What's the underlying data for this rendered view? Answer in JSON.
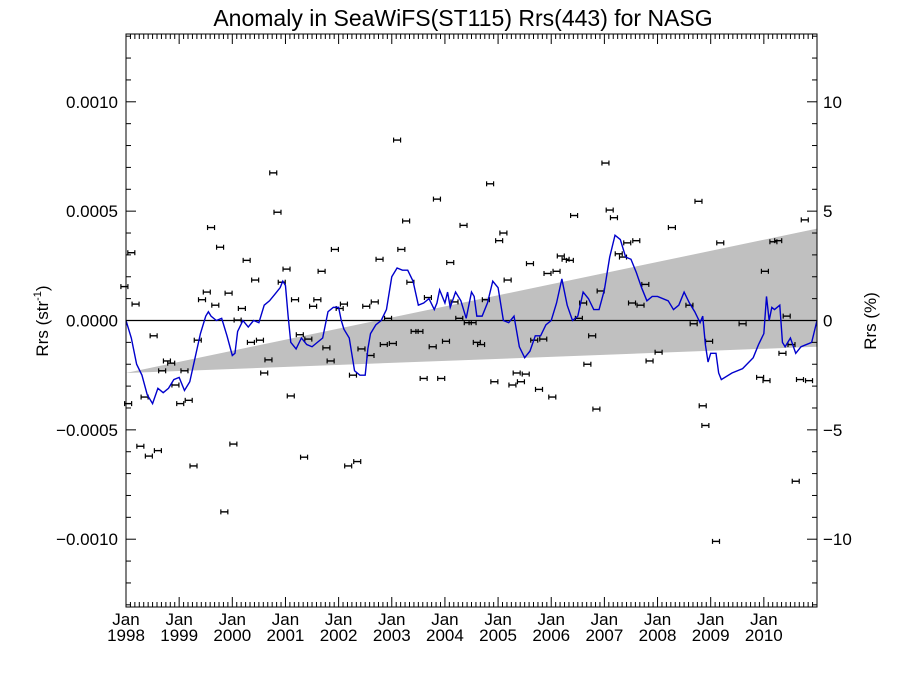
{
  "chart_data": {
    "type": "scatter",
    "title": "Anomaly in SeaWiFS(ST115) Rrs(443) for NASG",
    "ylabel_left": "Rrs (str",
    "ylabel_left_sup": "-1",
    "ylabel_left_end": ")",
    "ylabel_right": "Rrs (%)",
    "ylim_left": [
      -0.00131,
      0.00131
    ],
    "ylim_right": [
      -13.1,
      13.1
    ],
    "xlim": [
      1998.0,
      2011.0
    ],
    "left_ticks": [
      {
        "value": 0.001,
        "label": "0.0010"
      },
      {
        "value": 0.0005,
        "label": "0.0005"
      },
      {
        "value": 0.0,
        "label": "0.0000"
      },
      {
        "value": -0.0005,
        "label": "−0.0005"
      },
      {
        "value": -0.001,
        "label": "−0.0010"
      }
    ],
    "right_ticks": [
      {
        "value": 10,
        "label": "10"
      },
      {
        "value": 5,
        "label": "5"
      },
      {
        "value": 0,
        "label": "0"
      },
      {
        "value": -5,
        "label": "−5"
      },
      {
        "value": -10,
        "label": "−10"
      }
    ],
    "x_ticks": [
      {
        "value": 1998,
        "month": "Jan",
        "year": "1998"
      },
      {
        "value": 1999,
        "month": "Jan",
        "year": "1999"
      },
      {
        "value": 2000,
        "month": "Jan",
        "year": "2000"
      },
      {
        "value": 2001,
        "month": "Jan",
        "year": "2001"
      },
      {
        "value": 2002,
        "month": "Jan",
        "year": "2002"
      },
      {
        "value": 2003,
        "month": "Jan",
        "year": "2003"
      },
      {
        "value": 2004,
        "month": "Jan",
        "year": "2004"
      },
      {
        "value": 2005,
        "month": "Jan",
        "year": "2005"
      },
      {
        "value": 2006,
        "month": "Jan",
        "year": "2006"
      },
      {
        "value": 2007,
        "month": "Jan",
        "year": "2007"
      },
      {
        "value": 2008,
        "month": "Jan",
        "year": "2008"
      },
      {
        "value": 2009,
        "month": "Jan",
        "year": "2009"
      },
      {
        "value": 2010,
        "month": "Jan",
        "year": "2010"
      }
    ],
    "trend_band": {
      "x": [
        1998.0,
        2011.0
      ],
      "upper": [
        -0.00024,
        0.00042
      ],
      "lower": [
        -0.00024,
        -0.00012
      ],
      "color": "#c0c0c0"
    },
    "zero_line": 0,
    "line_color": "#0000cc",
    "points": [
      [
        1997.97,
        0.000155
      ],
      [
        1998.04,
        -0.00038
      ],
      [
        1998.1,
        0.00031
      ],
      [
        1998.18,
        7.5e-05
      ],
      [
        1998.27,
        -0.000575
      ],
      [
        1998.35,
        -0.00035
      ],
      [
        1998.43,
        -0.00062
      ],
      [
        1998.52,
        -7e-05
      ],
      [
        1998.6,
        -0.000595
      ],
      [
        1998.68,
        -0.00023
      ],
      [
        1998.77,
        -0.000185
      ],
      [
        1998.85,
        -0.000195
      ],
      [
        1998.93,
        -0.000295
      ],
      [
        1999.02,
        -0.00038
      ],
      [
        1999.1,
        -0.00023
      ],
      [
        1999.18,
        -0.000365
      ],
      [
        1999.27,
        -0.000665
      ],
      [
        1999.35,
        -9e-05
      ],
      [
        1999.43,
        9.5e-05
      ],
      [
        1999.52,
        0.00013
      ],
      [
        1999.6,
        0.000425
      ],
      [
        1999.68,
        7e-05
      ],
      [
        1999.77,
        0.000335
      ],
      [
        1999.85,
        -0.000875
      ],
      [
        1999.93,
        0.000125
      ],
      [
        2000.02,
        -0.000565
      ],
      [
        2000.1,
        2e-06
      ],
      [
        2000.18,
        5.5e-05
      ],
      [
        2000.27,
        0.000275
      ],
      [
        2000.35,
        -0.0001
      ],
      [
        2000.43,
        0.000185
      ],
      [
        2000.52,
        -9e-05
      ],
      [
        2000.6,
        -0.00024
      ],
      [
        2000.68,
        -0.00018
      ],
      [
        2000.77,
        0.000675
      ],
      [
        2000.85,
        0.000495
      ],
      [
        2000.93,
        0.000175
      ],
      [
        2001.02,
        0.000235
      ],
      [
        2001.1,
        -0.000345
      ],
      [
        2001.18,
        9.5e-05
      ],
      [
        2001.27,
        -6.5e-05
      ],
      [
        2001.35,
        -0.000625
      ],
      [
        2001.43,
        -8.5e-05
      ],
      [
        2001.52,
        6.5e-05
      ],
      [
        2001.6,
        9.5e-05
      ],
      [
        2001.68,
        0.000225
      ],
      [
        2001.77,
        -0.000125
      ],
      [
        2001.85,
        -0.000185
      ],
      [
        2001.93,
        0.000325
      ],
      [
        2002.02,
        5.5e-05
      ],
      [
        2002.1,
        7.5e-05
      ],
      [
        2002.18,
        -0.000665
      ],
      [
        2002.27,
        -0.00025
      ],
      [
        2002.35,
        -0.000645
      ],
      [
        2002.43,
        -0.00013
      ],
      [
        2002.52,
        6.5e-05
      ],
      [
        2002.6,
        -0.00016
      ],
      [
        2002.68,
        8.5e-05
      ],
      [
        2002.77,
        0.00028
      ],
      [
        2002.85,
        -0.00011
      ],
      [
        2002.93,
        1e-05
      ],
      [
        2003.02,
        -0.000105
      ],
      [
        2003.1,
        0.000825
      ],
      [
        2003.18,
        0.000325
      ],
      [
        2003.27,
        0.000455
      ],
      [
        2003.35,
        0.000175
      ],
      [
        2003.43,
        -5e-05
      ],
      [
        2003.52,
        -5e-05
      ],
      [
        2003.6,
        -0.000265
      ],
      [
        2003.68,
        0.000105
      ],
      [
        2003.77,
        -0.00012
      ],
      [
        2003.85,
        0.000555
      ],
      [
        2003.93,
        -0.000265
      ],
      [
        2004.02,
        -9.5e-05
      ],
      [
        2004.1,
        0.000265
      ],
      [
        2004.18,
        8.5e-05
      ],
      [
        2004.27,
        1e-05
      ],
      [
        2004.35,
        0.000435
      ],
      [
        2004.43,
        -1e-05
      ],
      [
        2004.52,
        -1e-05
      ],
      [
        2004.6,
        -0.0001
      ],
      [
        2004.68,
        -0.00011
      ],
      [
        2004.77,
        9.5e-05
      ],
      [
        2004.85,
        0.000625
      ],
      [
        2004.93,
        -0.00028
      ],
      [
        2005.02,
        0.000365
      ],
      [
        2005.1,
        0.0004
      ],
      [
        2005.18,
        0.000185
      ],
      [
        2005.27,
        -0.000295
      ],
      [
        2005.35,
        -0.00024
      ],
      [
        2005.43,
        -0.00028
      ],
      [
        2005.52,
        -0.000245
      ],
      [
        2005.6,
        0.00026
      ],
      [
        2005.68,
        -9e-05
      ],
      [
        2005.77,
        -0.000315
      ],
      [
        2005.85,
        -8.5e-05
      ],
      [
        2005.93,
        0.000215
      ],
      [
        2006.02,
        -0.00035
      ],
      [
        2006.1,
        0.000225
      ],
      [
        2006.18,
        0.000295
      ],
      [
        2006.27,
        0.00028
      ],
      [
        2006.35,
        0.000275
      ],
      [
        2006.43,
        0.00048
      ],
      [
        2006.52,
        1e-05
      ],
      [
        2006.6,
        8e-05
      ],
      [
        2006.68,
        -0.0002
      ],
      [
        2006.77,
        -7e-05
      ],
      [
        2006.85,
        -0.000405
      ],
      [
        2006.93,
        0.000135
      ],
      [
        2007.02,
        0.00072
      ],
      [
        2007.1,
        0.000505
      ],
      [
        2007.18,
        0.00047
      ],
      [
        2007.27,
        0.000305
      ],
      [
        2007.35,
        0.00029
      ],
      [
        2007.43,
        0.000355
      ],
      [
        2007.52,
        8e-05
      ],
      [
        2007.6,
        0.000365
      ],
      [
        2007.68,
        7e-05
      ],
      [
        2007.77,
        0.000165
      ],
      [
        2007.85,
        -0.000185
      ],
      [
        2008.02,
        -0.000145
      ],
      [
        2008.27,
        0.000425
      ],
      [
        2008.6,
        7e-05
      ],
      [
        2008.68,
        -1.5e-05
      ],
      [
        2008.77,
        0.000545
      ],
      [
        2008.85,
        -0.00039
      ],
      [
        2008.9,
        -0.00048
      ],
      [
        2008.97,
        -9.5e-05
      ],
      [
        2009.1,
        -0.00101
      ],
      [
        2009.18,
        0.000355
      ],
      [
        2009.6,
        -1.5e-05
      ],
      [
        2009.93,
        -0.00026
      ],
      [
        2010.02,
        0.000225
      ],
      [
        2010.05,
        -0.000275
      ],
      [
        2010.18,
        0.00036
      ],
      [
        2010.27,
        0.000365
      ],
      [
        2010.35,
        -0.00015
      ],
      [
        2010.43,
        2e-05
      ],
      [
        2010.52,
        -0.00011
      ],
      [
        2010.6,
        -0.000735
      ],
      [
        2010.68,
        -0.00027
      ],
      [
        2010.77,
        0.00046
      ],
      [
        2010.85,
        -0.000275
      ]
    ],
    "running_mean": [
      [
        1998.0,
        0.0
      ],
      [
        1998.1,
        -8e-05
      ],
      [
        1998.2,
        -0.0002
      ],
      [
        1998.3,
        -0.00025
      ],
      [
        1998.4,
        -0.00034
      ],
      [
        1998.5,
        -0.00038
      ],
      [
        1998.6,
        -0.00031
      ],
      [
        1998.7,
        -0.00033
      ],
      [
        1998.8,
        -0.00031
      ],
      [
        1998.9,
        -0.00027
      ],
      [
        1999.0,
        -0.00026
      ],
      [
        1999.1,
        -0.00032
      ],
      [
        1999.2,
        -0.00028
      ],
      [
        1999.3,
        -0.00017
      ],
      [
        1999.4,
        -6e-05
      ],
      [
        1999.5,
        2e-05
      ],
      [
        1999.55,
        4e-05
      ],
      [
        1999.6,
        2e-05
      ],
      [
        1999.7,
        0.0
      ],
      [
        1999.8,
        1e-05
      ],
      [
        1999.9,
        -7e-05
      ],
      [
        2000.0,
        -0.00016
      ],
      [
        2000.05,
        -0.00015
      ],
      [
        2000.1,
        -5e-05
      ],
      [
        2000.2,
        0.0
      ],
      [
        2000.3,
        -3e-05
      ],
      [
        2000.4,
        0.0
      ],
      [
        2000.5,
        -1e-05
      ],
      [
        2000.6,
        7e-05
      ],
      [
        2000.7,
        9e-05
      ],
      [
        2000.8,
        0.00012
      ],
      [
        2000.9,
        0.00015
      ],
      [
        2000.95,
        0.00018
      ],
      [
        2001.0,
        0.00016
      ],
      [
        2001.05,
        2e-05
      ],
      [
        2001.1,
        -0.0001
      ],
      [
        2001.2,
        -0.00013
      ],
      [
        2001.3,
        -8e-05
      ],
      [
        2001.4,
        -0.00011
      ],
      [
        2001.5,
        -0.00012
      ],
      [
        2001.6,
        -0.0001
      ],
      [
        2001.7,
        -8e-05
      ],
      [
        2001.8,
        4e-05
      ],
      [
        2001.9,
        6e-05
      ],
      [
        2002.0,
        6e-05
      ],
      [
        2002.05,
        0.0
      ],
      [
        2002.1,
        -4e-05
      ],
      [
        2002.2,
        -8e-05
      ],
      [
        2002.3,
        -0.00023
      ],
      [
        2002.4,
        -0.00025
      ],
      [
        2002.5,
        -0.00025
      ],
      [
        2002.55,
        -0.00013
      ],
      [
        2002.6,
        -6e-05
      ],
      [
        2002.7,
        -2e-05
      ],
      [
        2002.8,
        0.0
      ],
      [
        2002.9,
        5e-05
      ],
      [
        2003.0,
        0.0002
      ],
      [
        2003.1,
        0.00024
      ],
      [
        2003.2,
        0.00023
      ],
      [
        2003.3,
        0.00023
      ],
      [
        2003.4,
        0.00018
      ],
      [
        2003.5,
        7e-05
      ],
      [
        2003.6,
        8e-05
      ],
      [
        2003.7,
        0.0001
      ],
      [
        2003.8,
        5e-05
      ],
      [
        2003.85,
        8e-05
      ],
      [
        2003.9,
        0.00014
      ],
      [
        2004.0,
        8e-05
      ],
      [
        2004.05,
        0.00013
      ],
      [
        2004.1,
        6e-05
      ],
      [
        2004.2,
        0.00013
      ],
      [
        2004.3,
        9e-05
      ],
      [
        2004.4,
        1e-05
      ],
      [
        2004.5,
        0.00013
      ],
      [
        2004.55,
        0.00011
      ],
      [
        2004.6,
        2e-05
      ],
      [
        2004.7,
        2e-05
      ],
      [
        2004.8,
        8e-05
      ],
      [
        2004.9,
        0.00018
      ],
      [
        2005.0,
        0.00015
      ],
      [
        2005.1,
        0.0
      ],
      [
        2005.2,
        -1e-05
      ],
      [
        2005.3,
        2e-05
      ],
      [
        2005.4,
        -0.00012
      ],
      [
        2005.5,
        -0.00017
      ],
      [
        2005.6,
        -0.00014
      ],
      [
        2005.7,
        -7e-05
      ],
      [
        2005.8,
        -7e-05
      ],
      [
        2005.9,
        -2e-05
      ],
      [
        2006.0,
        0.0
      ],
      [
        2006.1,
        8e-05
      ],
      [
        2006.2,
        0.00019
      ],
      [
        2006.3,
        7e-05
      ],
      [
        2006.4,
        0.0
      ],
      [
        2006.5,
        2e-05
      ],
      [
        2006.6,
        0.00013
      ],
      [
        2006.7,
        0.0001
      ],
      [
        2006.8,
        5e-05
      ],
      [
        2006.9,
        5e-05
      ],
      [
        2007.0,
        0.00014
      ],
      [
        2007.1,
        0.00029
      ],
      [
        2007.2,
        0.00039
      ],
      [
        2007.3,
        0.00037
      ],
      [
        2007.4,
        0.00029
      ],
      [
        2007.5,
        0.00028
      ],
      [
        2007.6,
        0.00022
      ],
      [
        2007.7,
        0.00015
      ],
      [
        2007.8,
        9e-05
      ],
      [
        2007.9,
        0.00011
      ],
      [
        2008.0,
        0.00011
      ],
      [
        2008.2,
        9e-05
      ],
      [
        2008.3,
        5e-05
      ],
      [
        2008.4,
        7e-05
      ],
      [
        2008.5,
        0.00013
      ],
      [
        2008.6,
        8e-05
      ],
      [
        2008.7,
        4e-05
      ],
      [
        2008.8,
        -1e-05
      ],
      [
        2008.85,
        2e-05
      ],
      [
        2008.9,
        -0.00011
      ],
      [
        2008.95,
        -0.00019
      ],
      [
        2009.0,
        -0.00015
      ],
      [
        2009.1,
        -0.00015
      ],
      [
        2009.15,
        -0.00024
      ],
      [
        2009.2,
        -0.00027
      ],
      [
        2009.4,
        -0.00024
      ],
      [
        2009.6,
        -0.00022
      ],
      [
        2009.8,
        -0.00017
      ],
      [
        2009.9,
        -0.00011
      ],
      [
        2010.0,
        -6e-05
      ],
      [
        2010.05,
        0.00011
      ],
      [
        2010.1,
        0.0
      ],
      [
        2010.15,
        6e-05
      ],
      [
        2010.2,
        5e-05
      ],
      [
        2010.3,
        7e-05
      ],
      [
        2010.35,
        -0.0001
      ],
      [
        2010.4,
        -0.00012
      ],
      [
        2010.5,
        -8e-05
      ],
      [
        2010.6,
        -0.00015
      ],
      [
        2010.7,
        -0.00012
      ],
      [
        2010.8,
        -0.00011
      ],
      [
        2010.9,
        -0.0001
      ],
      [
        2011.0,
        0.0
      ]
    ]
  }
}
